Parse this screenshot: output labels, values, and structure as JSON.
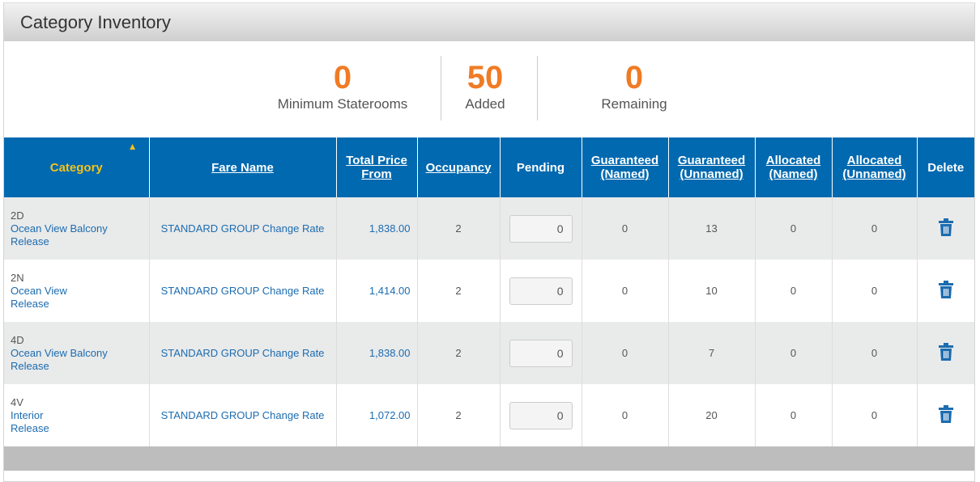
{
  "title": "Category Inventory",
  "summary": [
    {
      "value": "0",
      "label": "Minimum Staterooms"
    },
    {
      "value": "50",
      "label": "Added"
    },
    {
      "value": "0",
      "label": "Remaining"
    }
  ],
  "columns": [
    "Category",
    "Fare Name",
    "Total Price From",
    "Occupancy",
    "Pending",
    "Guaranteed (Named)",
    "Guaranteed (Unnamed)",
    "Allocated (Named)",
    "Allocated (Unnamed)",
    "Delete"
  ],
  "rows": [
    {
      "code": "2D",
      "name": "Ocean View Balcony",
      "action": "Release",
      "fare": "STANDARD GROUP Change Rate",
      "price": "1,838.00",
      "occupancy": "2",
      "pending": "0",
      "g_named": "0",
      "g_unnamed": "13",
      "a_named": "0",
      "a_unnamed": "0"
    },
    {
      "code": "2N",
      "name": "Ocean View",
      "action": "Release",
      "fare": "STANDARD GROUP Change Rate",
      "price": "1,414.00",
      "occupancy": "2",
      "pending": "0",
      "g_named": "0",
      "g_unnamed": "10",
      "a_named": "0",
      "a_unnamed": "0"
    },
    {
      "code": "4D",
      "name": "Ocean View Balcony",
      "action": "Release",
      "fare": "STANDARD GROUP Change Rate",
      "price": "1,838.00",
      "occupancy": "2",
      "pending": "0",
      "g_named": "0",
      "g_unnamed": "7",
      "a_named": "0",
      "a_unnamed": "0"
    },
    {
      "code": "4V",
      "name": "Interior",
      "action": "Release",
      "fare": "STANDARD GROUP Change Rate",
      "price": "1,072.00",
      "occupancy": "2",
      "pending": "0",
      "g_named": "0",
      "g_unnamed": "20",
      "a_named": "0",
      "a_unnamed": "0"
    }
  ],
  "sort": {
    "column": "Category",
    "direction": "ascending"
  },
  "colors": {
    "header": "#0069b0",
    "accent": "#f07b24",
    "sort": "#f5c21b"
  }
}
